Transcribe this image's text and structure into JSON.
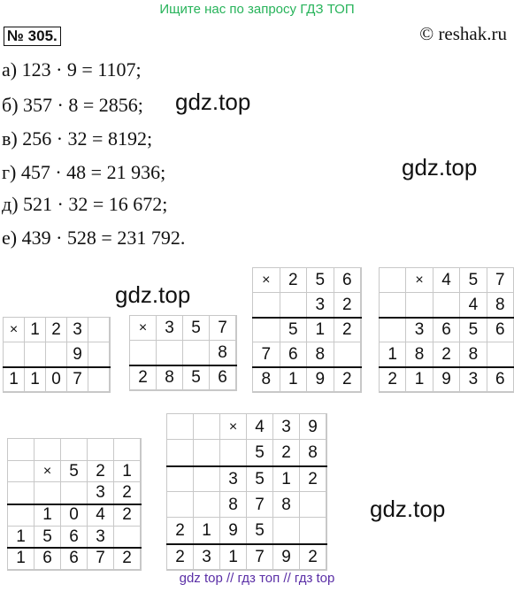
{
  "banner": "Ищите нас по запросу ГДЗ ТОП",
  "task_number": "№ 305.",
  "copyright": "© reshak.ru",
  "equations": [
    "а) 123 · 9 = 1107;",
    "б) 357 · 8 = 2856;",
    "в) 256 · 32 = 8192;",
    "г) 457 · 48 = 21 936;",
    "д) 521 · 32 = 16 672;",
    "е) 439 · 528 = 231 792."
  ],
  "watermark": "gdz.top",
  "footer": "gdz top // гдз топ // гдз top",
  "grids": [
    {
      "name": "grid-123x9",
      "cols": 5,
      "rows": [
        [
          "×",
          "1",
          "2",
          "3",
          ""
        ],
        [
          "",
          "",
          "",
          "9",
          ""
        ],
        [
          "1",
          "1",
          "0",
          "7",
          ""
        ]
      ],
      "lines_after": [
        2
      ]
    },
    {
      "name": "grid-357x8",
      "cols": 4,
      "rows": [
        [
          "×",
          "3",
          "5",
          "7"
        ],
        [
          "",
          "",
          "",
          "8"
        ],
        [
          "2",
          "8",
          "5",
          "6"
        ]
      ],
      "lines_after": [
        2
      ]
    },
    {
      "name": "grid-256x32",
      "cols": 4,
      "rows": [
        [
          "×",
          "2",
          "5",
          "6"
        ],
        [
          "",
          "",
          "3",
          "2"
        ],
        [
          "",
          "5",
          "1",
          "2"
        ],
        [
          "7",
          "6",
          "8",
          ""
        ],
        [
          "8",
          "1",
          "9",
          "2"
        ]
      ],
      "lines_after": [
        2,
        4
      ]
    },
    {
      "name": "grid-457x48",
      "cols": 5,
      "rows": [
        [
          "",
          "×",
          "4",
          "5",
          "7"
        ],
        [
          "",
          "",
          "",
          "4",
          "8"
        ],
        [
          "",
          "3",
          "6",
          "5",
          "6"
        ],
        [
          "1",
          "8",
          "2",
          "8",
          ""
        ],
        [
          "2",
          "1",
          "9",
          "3",
          "6"
        ]
      ],
      "lines_after": [
        2,
        4
      ]
    },
    {
      "name": "grid-521x32",
      "cols": 5,
      "rows": [
        [
          "",
          "",
          "",
          "",
          ""
        ],
        [
          "",
          "×",
          "5",
          "2",
          "1"
        ],
        [
          "",
          "",
          "",
          "3",
          "2"
        ],
        [
          "",
          "1",
          "0",
          "4",
          "2"
        ],
        [
          "1",
          "5",
          "6",
          "3",
          ""
        ],
        [
          "1",
          "6",
          "6",
          "7",
          "2"
        ]
      ],
      "lines_after": [
        3,
        5
      ]
    },
    {
      "name": "grid-439x528",
      "cols": 6,
      "rows": [
        [
          "",
          "",
          "×",
          "4",
          "3",
          "9"
        ],
        [
          "",
          "",
          "",
          "5",
          "2",
          "8"
        ],
        [
          "",
          "",
          "3",
          "5",
          "1",
          "2"
        ],
        [
          "",
          "",
          "8",
          "7",
          "8",
          ""
        ],
        [
          "2",
          "1",
          "9",
          "5",
          "",
          ""
        ],
        [
          "2",
          "3",
          "1",
          "7",
          "9",
          "2"
        ]
      ],
      "lines_after": [
        2,
        5
      ]
    }
  ]
}
